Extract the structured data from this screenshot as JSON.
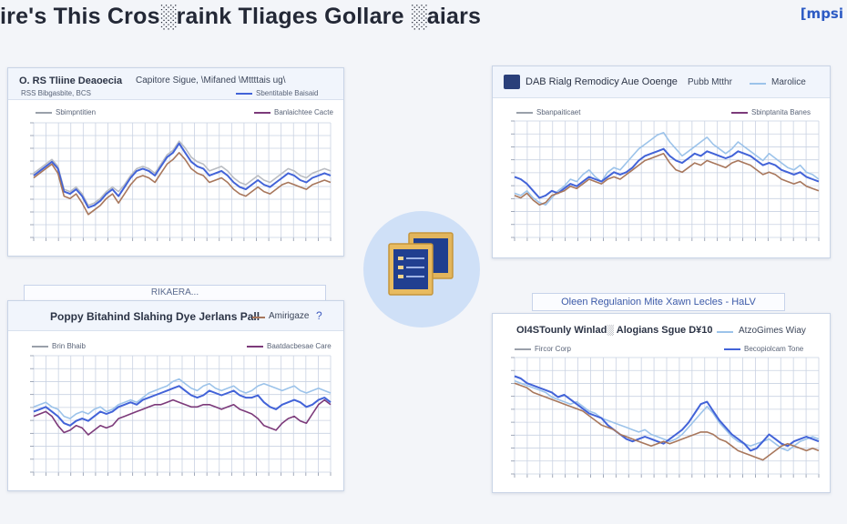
{
  "header": {
    "title": "ire's This Cros░raink Tliages Gollare ░aiars",
    "brand": "[mpsi"
  },
  "colors": {
    "grey_line": "#b9bcc2",
    "blue_line": "#4263d8",
    "light_blue_line": "#9cc3ea",
    "brown_line": "#a8775c",
    "purple_line": "#7c3a7a",
    "grid": "#c9d2e2",
    "accent": "#2d5bc4"
  },
  "center_icon": {
    "icon": "documents-icon"
  },
  "panels": [
    {
      "title_left": "O. RS Tliine Deaoecia",
      "title_right": "Capitore Sigue, \\Mifaned \\Mttttais ug\\",
      "subtitle": "RSS Bibgasbite, BCS",
      "legend_top_right": "Sbentitable Baisaid",
      "legend_left": "Sbimpntitien",
      "legend_right": "Banlaichtee Cacte"
    },
    {
      "title_left": "DAB Rialg Remodicy Aue Ooenge",
      "title_right": "Pubb Mtthr",
      "title_far_right": "Marolice",
      "legend_left": "Sbanpaiticaet",
      "legend_right": "Sbinptanita Banes"
    },
    {
      "caption": "RIKAERA...",
      "title": "Poppy Bitahind Slahing Dye Jerlans Pall",
      "title_right": "Amirigaze",
      "legend_left": "Brin Bhaib",
      "legend_right": "Baatdacbesae Care"
    },
    {
      "caption": "Oleen Regulanion Mite Xawn Lecles - HaLV",
      "title": "OI4STounly Winlad░ Alogians Sgue D¥10",
      "title_right": "AtzoGimes Wiay",
      "legend_left": "Fircor Corp",
      "legend_right": "Becopiolcam Tone"
    }
  ],
  "chart_data": [
    {
      "type": "line",
      "x": [
        0,
        1,
        2,
        3,
        4,
        5,
        6,
        7,
        8,
        9,
        10,
        11,
        12,
        13,
        14,
        15,
        16,
        17,
        18,
        19,
        20,
        21,
        22,
        23,
        24,
        25,
        26,
        27,
        28,
        29,
        30,
        31,
        32,
        33,
        34,
        35,
        36,
        37,
        38,
        39,
        40,
        41,
        42,
        43,
        44,
        45,
        46,
        47,
        48,
        49
      ],
      "series": [
        {
          "values": [
            56,
            60,
            64,
            68,
            62,
            42,
            40,
            44,
            38,
            28,
            30,
            34,
            40,
            44,
            40,
            46,
            54,
            60,
            62,
            60,
            56,
            64,
            72,
            76,
            84,
            78,
            70,
            66,
            64,
            58,
            60,
            62,
            58,
            52,
            48,
            46,
            50,
            54,
            50,
            48,
            52,
            56,
            60,
            58,
            54,
            52,
            56,
            58,
            60,
            58
          ]
        },
        {
          "values": [
            54,
            58,
            62,
            66,
            60,
            40,
            38,
            42,
            36,
            26,
            28,
            32,
            38,
            42,
            36,
            44,
            52,
            58,
            60,
            58,
            54,
            62,
            70,
            74,
            82,
            74,
            66,
            62,
            60,
            54,
            56,
            58,
            54,
            48,
            44,
            42,
            46,
            50,
            46,
            44,
            48,
            52,
            56,
            54,
            50,
            48,
            52,
            54,
            56,
            54
          ]
        },
        {
          "values": [
            52,
            56,
            60,
            64,
            56,
            36,
            34,
            38,
            30,
            20,
            24,
            28,
            34,
            38,
            30,
            38,
            46,
            52,
            54,
            52,
            48,
            56,
            64,
            68,
            74,
            68,
            60,
            56,
            54,
            48,
            50,
            52,
            48,
            42,
            38,
            36,
            40,
            44,
            40,
            38,
            42,
            46,
            48,
            46,
            44,
            42,
            46,
            48,
            50,
            48
          ]
        }
      ],
      "ylim": [
        0,
        100
      ]
    },
    {
      "type": "line",
      "x": [
        0,
        1,
        2,
        3,
        4,
        5,
        6,
        7,
        8,
        9,
        10,
        11,
        12,
        13,
        14,
        15,
        16,
        17,
        18,
        19,
        20,
        21,
        22,
        23,
        24,
        25,
        26,
        27,
        28,
        29,
        30,
        31,
        32,
        33,
        34,
        35,
        36,
        37,
        38,
        39,
        40,
        41,
        42,
        43,
        44,
        45,
        46,
        47,
        48,
        49
      ],
      "series": [
        {
          "values": [
            38,
            36,
            40,
            34,
            30,
            28,
            34,
            40,
            44,
            50,
            48,
            54,
            58,
            52,
            48,
            56,
            60,
            58,
            64,
            70,
            76,
            80,
            84,
            88,
            90,
            82,
            76,
            70,
            74,
            78,
            82,
            86,
            80,
            76,
            72,
            76,
            82,
            78,
            74,
            70,
            66,
            72,
            68,
            64,
            60,
            58,
            62,
            56,
            54,
            50
          ]
        },
        {
          "values": [
            52,
            50,
            46,
            40,
            34,
            36,
            40,
            38,
            42,
            46,
            44,
            48,
            52,
            50,
            48,
            52,
            56,
            54,
            56,
            60,
            66,
            70,
            72,
            74,
            76,
            70,
            66,
            64,
            68,
            72,
            70,
            74,
            72,
            70,
            68,
            70,
            74,
            72,
            70,
            66,
            62,
            64,
            62,
            58,
            56,
            54,
            56,
            52,
            50,
            48
          ]
        },
        {
          "values": [
            36,
            34,
            38,
            32,
            28,
            30,
            36,
            38,
            40,
            44,
            42,
            46,
            50,
            48,
            46,
            50,
            52,
            50,
            54,
            58,
            62,
            66,
            68,
            70,
            72,
            64,
            58,
            56,
            60,
            64,
            62,
            66,
            64,
            62,
            60,
            64,
            66,
            64,
            62,
            58,
            54,
            56,
            54,
            50,
            48,
            46,
            48,
            44,
            42,
            40
          ]
        }
      ],
      "ylim": [
        0,
        100
      ]
    },
    {
      "type": "line",
      "x": [
        0,
        1,
        2,
        3,
        4,
        5,
        6,
        7,
        8,
        9,
        10,
        11,
        12,
        13,
        14,
        15,
        16,
        17,
        18,
        19,
        20,
        21,
        22,
        23,
        24,
        25,
        26,
        27,
        28,
        29,
        30,
        31,
        32,
        33,
        34,
        35,
        36,
        37,
        38,
        39,
        40,
        41,
        42,
        43,
        44,
        45,
        46,
        47,
        48,
        49
      ],
      "series": [
        {
          "values": [
            56,
            58,
            60,
            56,
            54,
            48,
            46,
            50,
            52,
            50,
            54,
            56,
            52,
            54,
            58,
            60,
            62,
            60,
            64,
            68,
            70,
            72,
            74,
            78,
            80,
            76,
            72,
            70,
            74,
            76,
            72,
            70,
            72,
            74,
            70,
            68,
            70,
            74,
            76,
            74,
            72,
            70,
            72,
            74,
            70,
            68,
            70,
            72,
            70,
            68
          ]
        },
        {
          "values": [
            52,
            54,
            56,
            52,
            48,
            42,
            40,
            44,
            46,
            44,
            48,
            52,
            50,
            52,
            56,
            58,
            60,
            58,
            62,
            64,
            66,
            68,
            70,
            72,
            74,
            70,
            66,
            64,
            66,
            70,
            68,
            66,
            68,
            70,
            66,
            64,
            64,
            66,
            60,
            56,
            54,
            58,
            60,
            62,
            60,
            56,
            58,
            62,
            64,
            60
          ]
        },
        {
          "values": [
            48,
            50,
            52,
            48,
            40,
            34,
            36,
            40,
            38,
            32,
            36,
            40,
            38,
            40,
            46,
            48,
            50,
            52,
            54,
            56,
            58,
            58,
            60,
            62,
            60,
            58,
            56,
            56,
            58,
            58,
            56,
            54,
            56,
            58,
            54,
            52,
            50,
            46,
            40,
            38,
            36,
            42,
            46,
            48,
            44,
            42,
            50,
            58,
            62,
            58
          ]
        }
      ],
      "ylim": [
        0,
        100
      ]
    },
    {
      "type": "line",
      "x": [
        0,
        1,
        2,
        3,
        4,
        5,
        6,
        7,
        8,
        9,
        10,
        11,
        12,
        13,
        14,
        15,
        16,
        17,
        18,
        19,
        20,
        21,
        22,
        23,
        24,
        25,
        26,
        27,
        28,
        29,
        30,
        31,
        32,
        33,
        34,
        35,
        36,
        37,
        38,
        39,
        40,
        41,
        42,
        43,
        44,
        45,
        46,
        47,
        48,
        49
      ],
      "series": [
        {
          "values": [
            80,
            78,
            76,
            74,
            72,
            70,
            66,
            64,
            62,
            60,
            62,
            58,
            54,
            52,
            48,
            46,
            44,
            42,
            40,
            38,
            36,
            38,
            34,
            32,
            30,
            28,
            30,
            34,
            40,
            46,
            52,
            58,
            52,
            44,
            38,
            32,
            28,
            26,
            24,
            26,
            28,
            30,
            26,
            22,
            20,
            24,
            28,
            30,
            32,
            30
          ]
        },
        {
          "values": [
            84,
            82,
            78,
            76,
            74,
            72,
            70,
            66,
            68,
            64,
            60,
            56,
            52,
            50,
            48,
            42,
            38,
            34,
            30,
            28,
            30,
            32,
            30,
            28,
            26,
            30,
            34,
            38,
            44,
            52,
            60,
            62,
            54,
            46,
            40,
            34,
            30,
            26,
            20,
            22,
            28,
            34,
            30,
            26,
            24,
            28,
            30,
            32,
            30,
            28
          ]
        },
        {
          "values": [
            78,
            76,
            74,
            70,
            68,
            66,
            64,
            62,
            60,
            58,
            56,
            54,
            50,
            46,
            42,
            40,
            38,
            34,
            32,
            30,
            28,
            26,
            24,
            26,
            28,
            26,
            28,
            30,
            32,
            34,
            36,
            36,
            34,
            30,
            28,
            24,
            20,
            18,
            16,
            14,
            12,
            16,
            20,
            24,
            26,
            24,
            22,
            20,
            22,
            20
          ]
        }
      ],
      "ylim": [
        0,
        100
      ]
    }
  ]
}
